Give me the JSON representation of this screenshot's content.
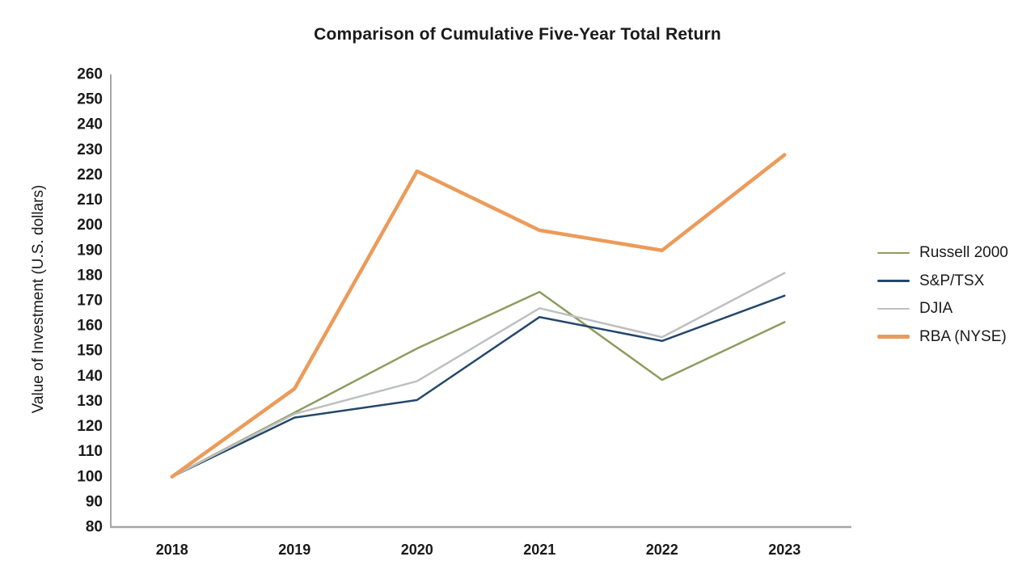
{
  "chart_data": {
    "type": "line",
    "title": "Comparison of Cumulative Five-Year Total Return",
    "xlabel": "",
    "ylabel": "Value of Investment (U.S. dollars)",
    "categories": [
      "2018",
      "2019",
      "2020",
      "2021",
      "2022",
      "2023"
    ],
    "series": [
      {
        "name": "Russell 2000",
        "color": "#8E9B60",
        "line_width": 2.5,
        "values": [
          100,
          125.5,
          151,
          173.5,
          138.5,
          161.5
        ]
      },
      {
        "name": "S&P/TSX",
        "color": "#24476B",
        "line_width": 2.5,
        "values": [
          100,
          123.5,
          130.5,
          163.5,
          154,
          172
        ]
      },
      {
        "name": "DJIA",
        "color": "#BDBFC0",
        "line_width": 2.5,
        "values": [
          100,
          125,
          138,
          167,
          155.5,
          181
        ]
      },
      {
        "name": "RBA (NYSE)",
        "color": "#EC9B5A",
        "line_width": 4.5,
        "values": [
          100,
          135,
          221.5,
          198,
          190,
          228
        ]
      }
    ],
    "ylim": [
      80,
      260
    ],
    "ytick_step": 10,
    "grid": false,
    "legend_position": "right",
    "axis_color": "#A6A6A6"
  }
}
